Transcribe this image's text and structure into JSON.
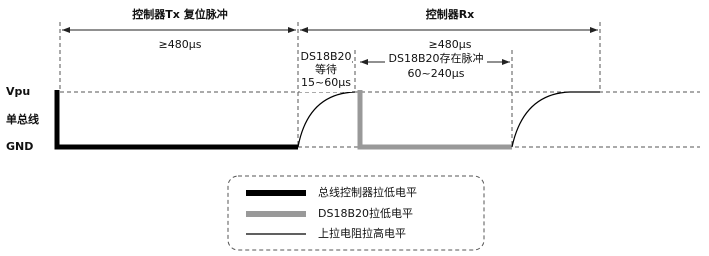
{
  "spans": [
    {
      "title": "控制器Tx 复位脉冲",
      "duration": "≥480μs"
    },
    {
      "title": "控制器Rx",
      "duration": "≥480μs"
    }
  ],
  "wait": {
    "lines": [
      "DS18B20",
      "等待",
      "15~60μs"
    ]
  },
  "presence": {
    "title": "DS18B20存在脉冲",
    "duration": "60~240μs"
  },
  "levels": {
    "high": "Vpu",
    "bus": "单总线",
    "low": "GND"
  },
  "legend": [
    "总线控制器拉低电平",
    "DS18B20拉低电平",
    "上拉电阻拉高电平"
  ]
}
